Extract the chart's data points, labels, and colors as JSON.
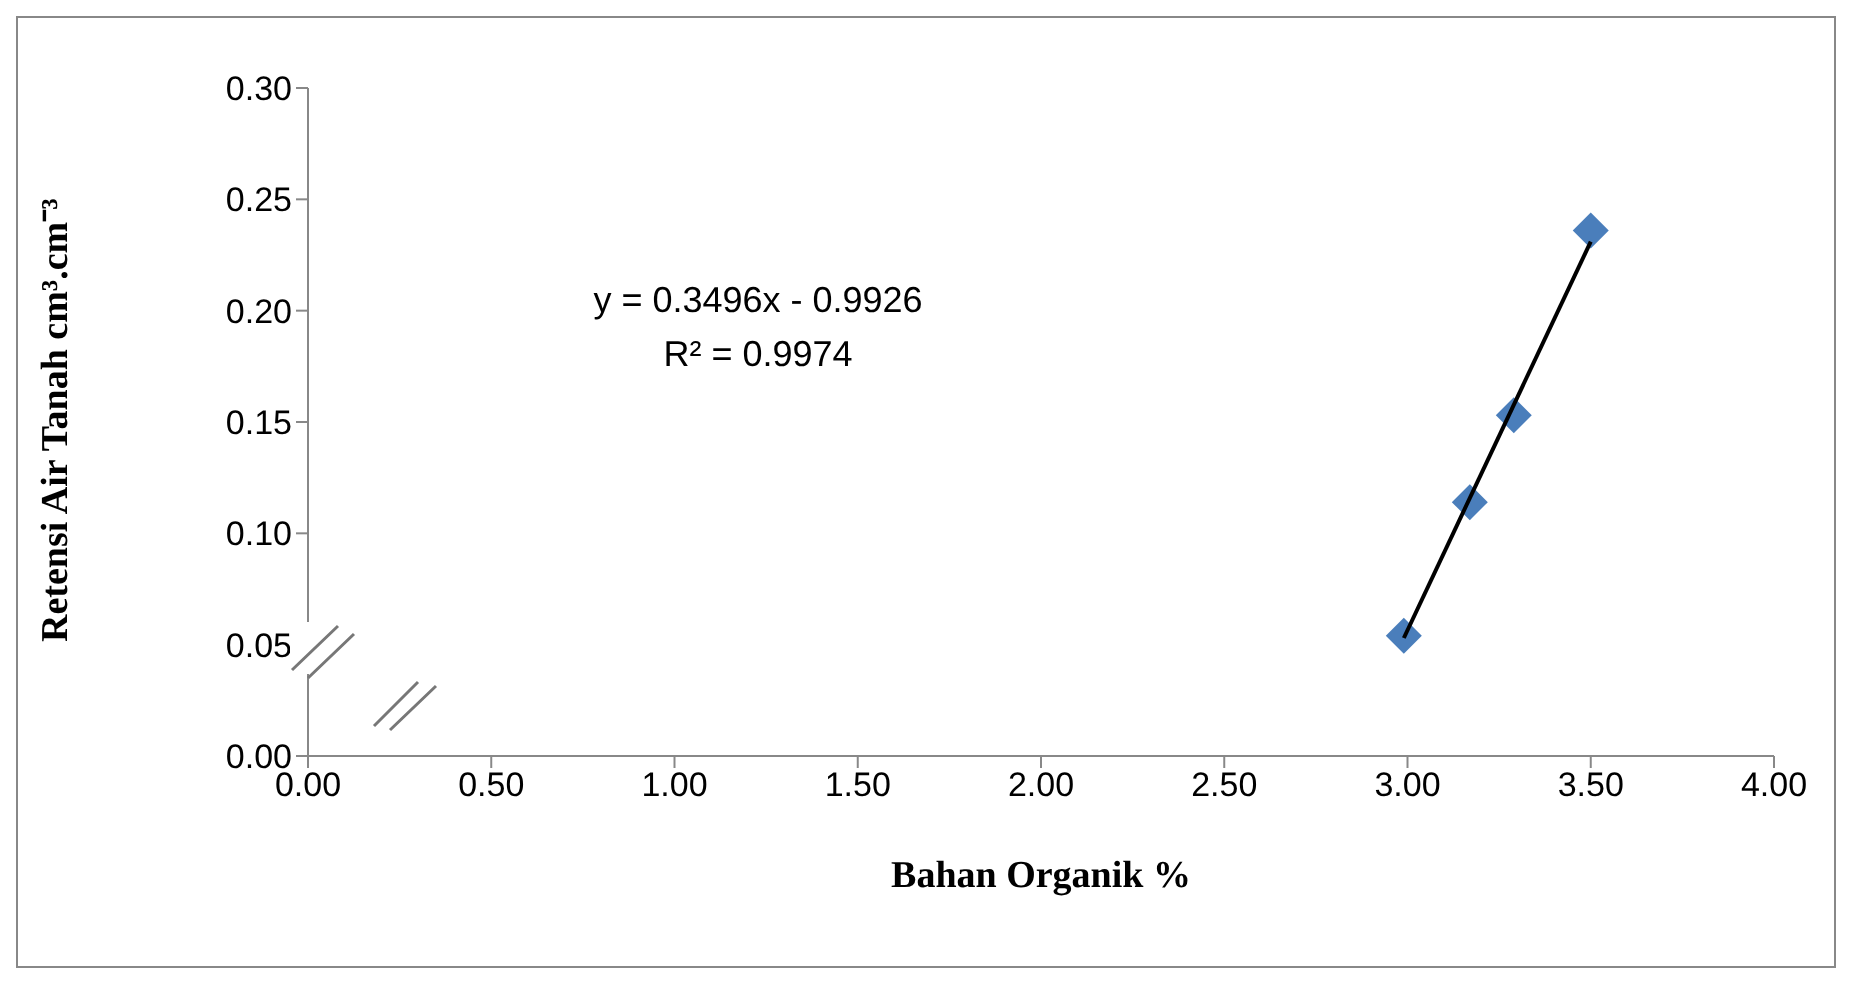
{
  "chart_data": {
    "type": "scatter",
    "xlabel": "Bahan Organik %",
    "ylabel": "Retensi Air Tanah cm³.cm⁻³",
    "annotations": [
      "y = 0.3496x - 0.9926",
      "R² = 0.9974"
    ],
    "xlim": [
      0,
      4
    ],
    "xticks": [
      {
        "value": 0,
        "label": "0.00"
      },
      {
        "value": 0.5,
        "label": "0.50"
      },
      {
        "value": 1,
        "label": "1.00"
      },
      {
        "value": 1.5,
        "label": "1.50"
      },
      {
        "value": 2,
        "label": "2.00"
      },
      {
        "value": 2.5,
        "label": "2.50"
      },
      {
        "value": 3,
        "label": "3.00"
      },
      {
        "value": 3.5,
        "label": "3.50"
      },
      {
        "value": 4,
        "label": "4.00"
      }
    ],
    "ylim": [
      0,
      0.3
    ],
    "yticks": [
      {
        "value": 0,
        "label": "0.00"
      },
      {
        "value": 0.05,
        "label": "0.05"
      },
      {
        "value": 0.1,
        "label": "0.10"
      },
      {
        "value": 0.15,
        "label": "0.15"
      },
      {
        "value": 0.2,
        "label": "0.20"
      },
      {
        "value": 0.25,
        "label": "0.25"
      },
      {
        "value": 0.3,
        "label": "0.30"
      }
    ],
    "grid": false,
    "legend": false,
    "marker": "diamond",
    "series": [
      {
        "type": "scatter",
        "color": "#4a7ebb",
        "x": [
          2.99,
          3.17,
          3.29,
          3.5
        ],
        "values": [
          0.054,
          0.114,
          0.153,
          0.236
        ]
      },
      {
        "type": "line",
        "color": "#000000",
        "marker": "none",
        "line_style": "solid",
        "x": [
          2.99,
          3.5
        ],
        "values": [
          0.053,
          0.231
        ]
      }
    ]
  }
}
